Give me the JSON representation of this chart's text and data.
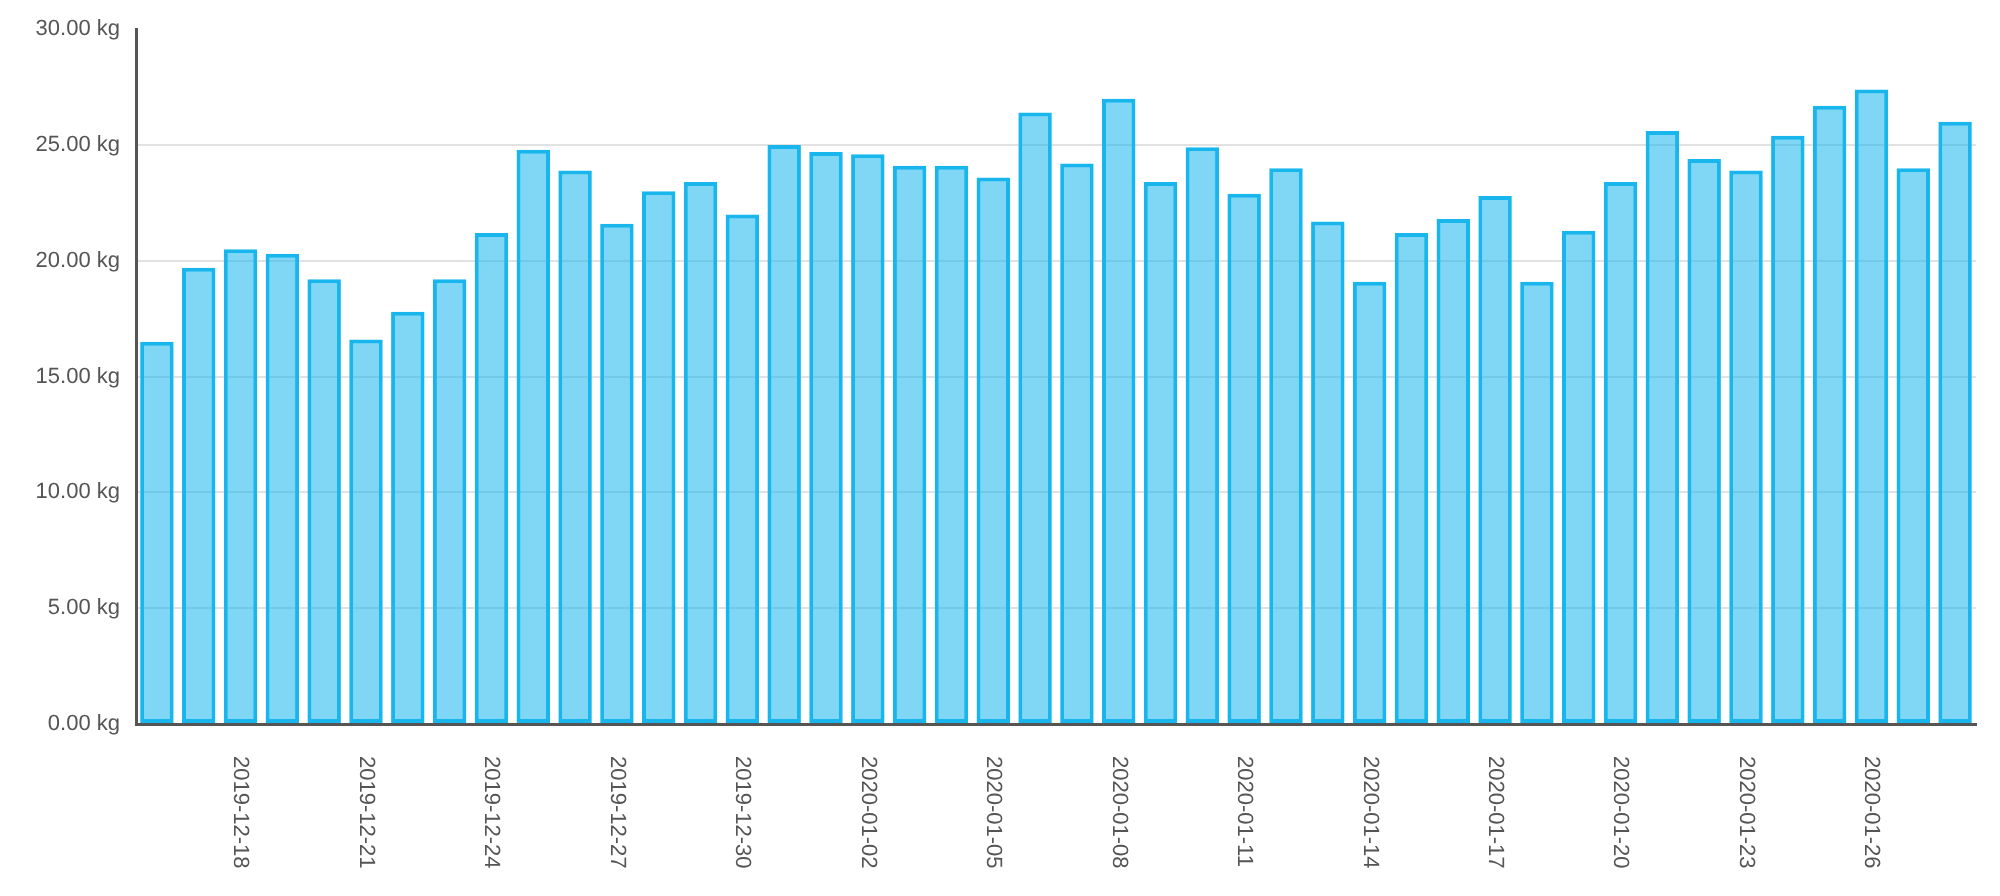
{
  "chart_data": {
    "type": "bar",
    "categories": [
      null,
      null,
      "2019-12-18",
      null,
      null,
      "2019-12-21",
      null,
      null,
      "2019-12-24",
      null,
      null,
      "2019-12-27",
      null,
      null,
      "2019-12-30",
      null,
      null,
      "2020-01-02",
      null,
      null,
      "2020-01-05",
      null,
      null,
      "2020-01-08",
      null,
      null,
      "2020-01-11",
      null,
      null,
      "2020-01-14",
      null,
      null,
      "2020-01-17",
      null,
      null,
      "2020-01-20",
      null,
      null,
      "2020-01-23",
      null,
      null,
      "2020-01-26",
      null,
      null
    ],
    "values": [
      16.5,
      19.7,
      20.5,
      20.3,
      19.2,
      16.6,
      17.8,
      19.2,
      21.2,
      24.8,
      23.9,
      21.6,
      23.0,
      23.4,
      22.0,
      25.0,
      24.7,
      24.6,
      24.1,
      24.1,
      23.6,
      26.4,
      24.2,
      27.0,
      23.4,
      24.9,
      22.9,
      24.0,
      21.7,
      19.1,
      21.2,
      21.8,
      22.8,
      19.1,
      21.3,
      23.4,
      25.6,
      24.4,
      23.9,
      25.4,
      26.7,
      27.4,
      24.0,
      26.0
    ],
    "color": "#18b6ed",
    "ylim": [
      0,
      30
    ],
    "yticks": [
      {
        "value": 0,
        "label": "0.00 kg"
      },
      {
        "value": 5,
        "label": "5.00 kg"
      },
      {
        "value": 10,
        "label": "10.00 kg"
      },
      {
        "value": 15,
        "label": "15.00 kg"
      },
      {
        "value": 20,
        "label": "20.00 kg"
      },
      {
        "value": 25,
        "label": "25.00 kg"
      },
      {
        "value": 30,
        "label": "30.00 kg"
      }
    ],
    "grid": "y"
  }
}
